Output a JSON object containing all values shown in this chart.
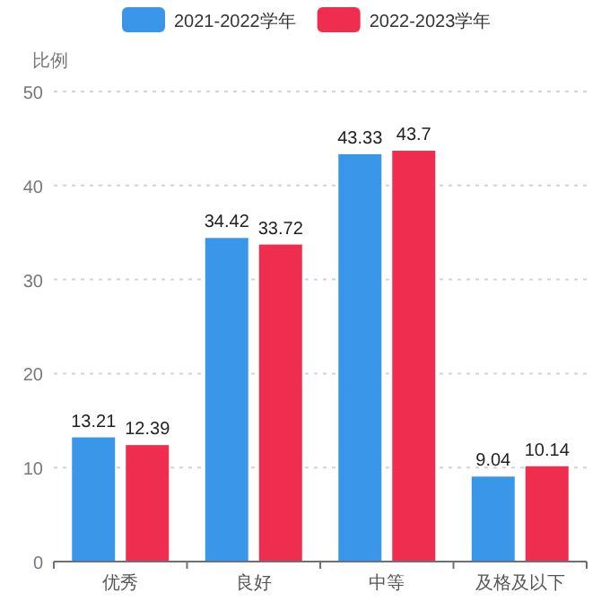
{
  "chart_data": {
    "type": "bar",
    "ylabel": "比例",
    "categories": [
      "优秀",
      "良好",
      "中等",
      "及格及以下"
    ],
    "series": [
      {
        "name": "2021-2022学年",
        "color": "#3a96e8",
        "values": [
          13.21,
          34.42,
          43.33,
          9.04
        ]
      },
      {
        "name": "2022-2023学年",
        "color": "#ef2d4f",
        "values": [
          12.39,
          33.72,
          43.7,
          10.14
        ]
      }
    ],
    "ylim": [
      0,
      50
    ],
    "yticks": [
      0,
      10,
      20,
      30,
      40,
      50
    ],
    "grid": "y",
    "legend": "top",
    "data_labels": true
  }
}
